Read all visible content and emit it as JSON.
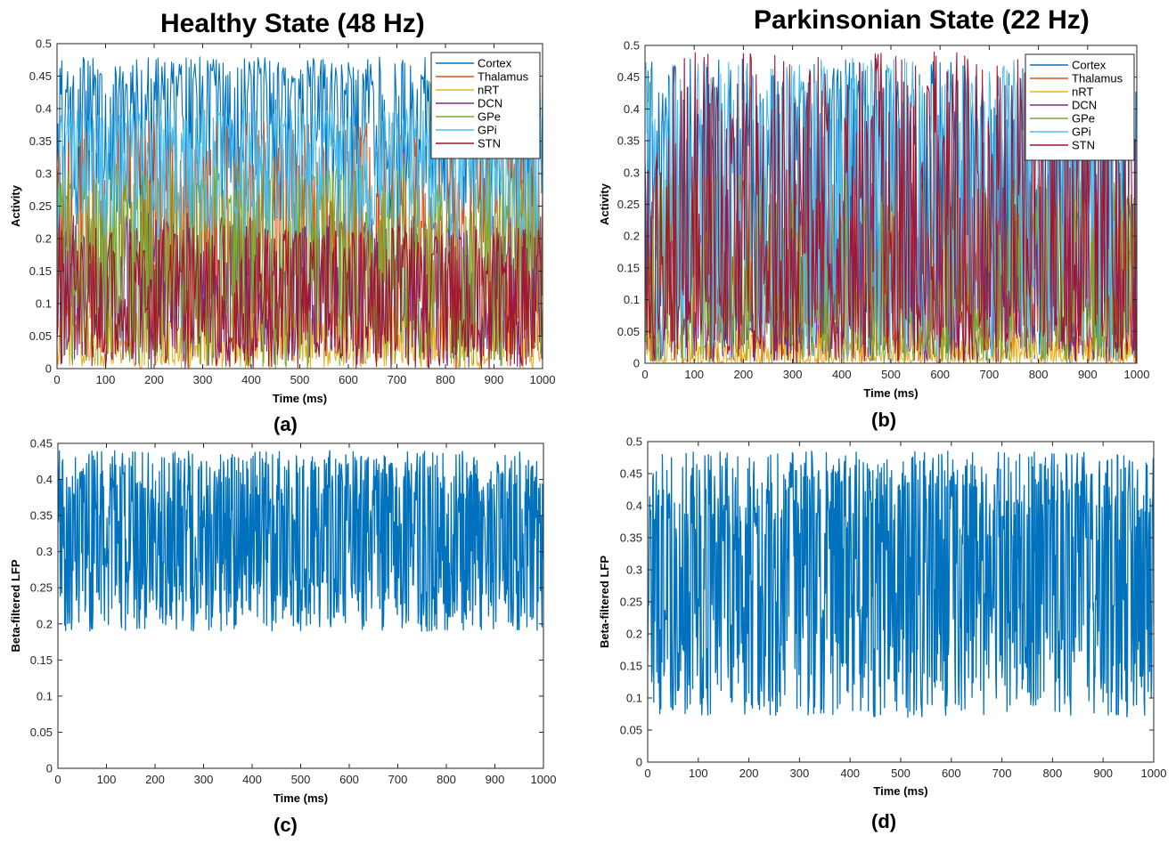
{
  "figure": {
    "panels": [
      {
        "id": "a",
        "title": "Healthy State (48 Hz)",
        "caption": "(a)"
      },
      {
        "id": "b",
        "title": "Parkinsonian State (22 Hz)",
        "caption": "(b)"
      },
      {
        "id": "c",
        "title": "",
        "caption": "(c)"
      },
      {
        "id": "d",
        "title": "",
        "caption": "(d)"
      }
    ]
  },
  "colors": {
    "Cortex": "#0072BD",
    "Thalamus": "#D95319",
    "nRT": "#EDB120",
    "DCN": "#7E2F8E",
    "GPe": "#77AC30",
    "GPi": "#4DBEEE",
    "STN": "#A2142F"
  },
  "chart_data": [
    {
      "type": "line",
      "title": "Healthy State (48 Hz)",
      "xlabel": "Time (ms)",
      "ylabel": "Activity",
      "xlim": [
        0,
        1000
      ],
      "ylim": [
        0,
        0.5
      ],
      "xticks": [
        "0",
        "100",
        "200",
        "300",
        "400",
        "500",
        "600",
        "700",
        "800",
        "900",
        "1000"
      ],
      "yticks": [
        "0",
        "0.05",
        "0.1",
        "0.15",
        "0.2",
        "0.25",
        "0.3",
        "0.35",
        "0.4",
        "0.45",
        "0.5"
      ],
      "legend": "top-right",
      "grid": false,
      "sampling_ms": 2,
      "series": [
        {
          "name": "Cortex",
          "range": [
            0.22,
            0.48
          ],
          "approx_mean": 0.4
        },
        {
          "name": "Thalamus",
          "range": [
            0.02,
            0.38
          ],
          "approx_mean": 0.2
        },
        {
          "name": "nRT",
          "range": [
            0.0,
            0.1
          ],
          "approx_mean": 0.04
        },
        {
          "name": "DCN",
          "range": [
            0.0,
            0.24
          ],
          "approx_mean": 0.12
        },
        {
          "name": "GPe",
          "range": [
            0.0,
            0.32
          ],
          "approx_mean": 0.18
        },
        {
          "name": "GPi",
          "range": [
            0.2,
            0.4
          ],
          "approx_mean": 0.33
        },
        {
          "name": "STN",
          "range": [
            0.0,
            0.22
          ],
          "approx_mean": 0.11
        }
      ]
    },
    {
      "type": "line",
      "title": "Parkinsonian State (22 Hz)",
      "xlabel": "Time (ms)",
      "ylabel": "Activity",
      "xlim": [
        0,
        1000
      ],
      "ylim": [
        0,
        0.5
      ],
      "xticks": [
        "0",
        "100",
        "200",
        "300",
        "400",
        "500",
        "600",
        "700",
        "800",
        "900",
        "1000"
      ],
      "yticks": [
        "0",
        "0.05",
        "0.1",
        "0.15",
        "0.2",
        "0.25",
        "0.3",
        "0.35",
        "0.4",
        "0.45",
        "0.5"
      ],
      "legend": "top-right",
      "grid": false,
      "sampling_ms": 2,
      "series": [
        {
          "name": "Cortex",
          "range": [
            0.0,
            0.48
          ],
          "approx_mean": 0.3
        },
        {
          "name": "Thalamus",
          "range": [
            0.0,
            0.3
          ],
          "approx_mean": 0.1
        },
        {
          "name": "nRT",
          "range": [
            0.0,
            0.05
          ],
          "approx_mean": 0.01
        },
        {
          "name": "DCN",
          "range": [
            0.0,
            0.3
          ],
          "approx_mean": 0.1
        },
        {
          "name": "GPe",
          "range": [
            0.0,
            0.3
          ],
          "approx_mean": 0.1
        },
        {
          "name": "GPi",
          "range": [
            0.0,
            0.48
          ],
          "approx_mean": 0.35
        },
        {
          "name": "STN",
          "range": [
            0.0,
            0.49
          ],
          "approx_mean": 0.2
        }
      ]
    },
    {
      "type": "line",
      "xlabel": "Time (ms)",
      "ylabel": "Beta-filtered LFP",
      "xlim": [
        0,
        1000
      ],
      "ylim": [
        0,
        0.45
      ],
      "xticks": [
        "0",
        "100",
        "200",
        "300",
        "400",
        "500",
        "600",
        "700",
        "800",
        "900",
        "1000"
      ],
      "yticks": [
        "0",
        "0.05",
        "0.1",
        "0.15",
        "0.2",
        "0.25",
        "0.3",
        "0.35",
        "0.4",
        "0.45"
      ],
      "grid": false,
      "sampling_ms": 1,
      "series": [
        {
          "range": [
            0.19,
            0.44
          ],
          "approx_mean": 0.32
        }
      ]
    },
    {
      "type": "line",
      "xlabel": "Time (ms)",
      "ylabel": "Beta-filtered LFP",
      "xlim": [
        0,
        1000
      ],
      "ylim": [
        0,
        0.5
      ],
      "xticks": [
        "0",
        "100",
        "200",
        "300",
        "400",
        "500",
        "600",
        "700",
        "800",
        "900",
        "1000"
      ],
      "yticks": [
        "0",
        "0.05",
        "0.1",
        "0.15",
        "0.2",
        "0.25",
        "0.3",
        "0.35",
        "0.4",
        "0.45",
        "0.5"
      ],
      "grid": false,
      "sampling_ms": 1,
      "series": [
        {
          "range": [
            0.07,
            0.485
          ],
          "approx_mean": 0.3
        }
      ]
    }
  ]
}
